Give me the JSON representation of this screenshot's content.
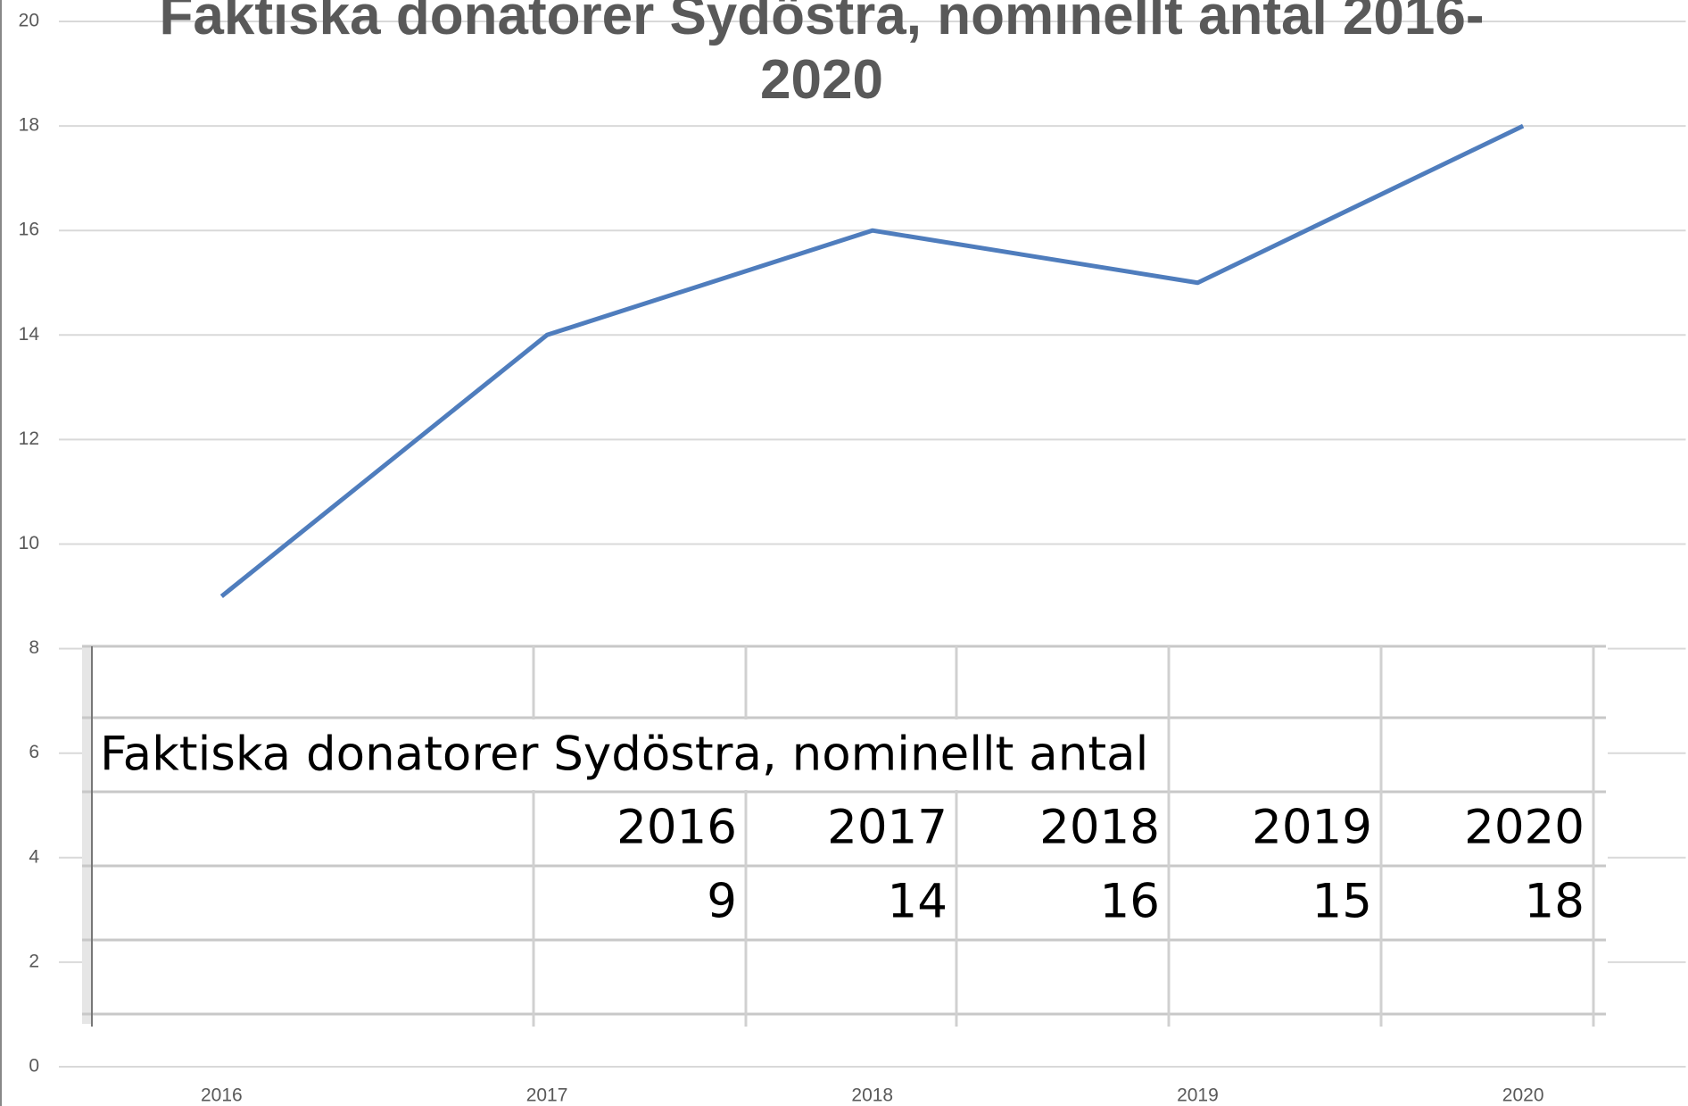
{
  "chart_data": {
    "type": "line",
    "title": "Faktiska donatorer Sydöstra, nominellt antal 2016-2020",
    "categories": [
      "2016",
      "2017",
      "2018",
      "2019",
      "2020"
    ],
    "series": [
      {
        "name": "Faktiska donatorer Sydöstra",
        "color": "#4f7dbd",
        "values": [
          9,
          14,
          16,
          15,
          18
        ]
      }
    ],
    "ylim": [
      0,
      20
    ],
    "yticks": [
      0,
      2,
      4,
      6,
      8,
      10,
      12,
      14,
      16,
      18,
      20
    ],
    "grid": true
  },
  "table": {
    "title": "Faktiska donatorer Sydöstra, nominellt antal",
    "header": [
      "2016",
      "2017",
      "2018",
      "2019",
      "2020"
    ],
    "rows": [
      [
        "9",
        "14",
        "16",
        "15",
        "18"
      ]
    ]
  }
}
